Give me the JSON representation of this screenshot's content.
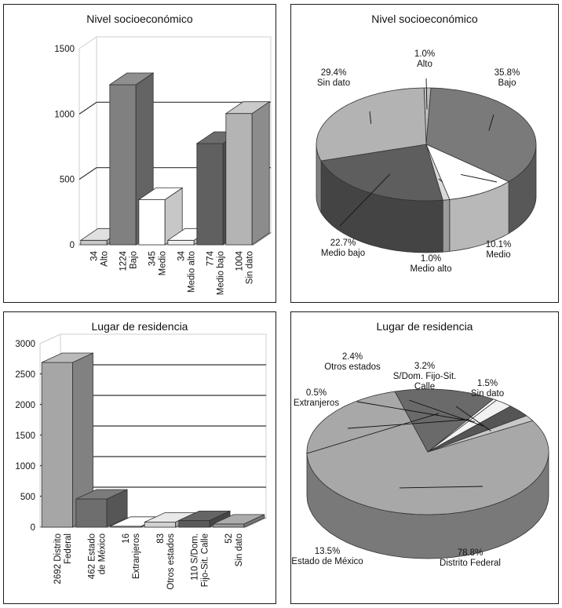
{
  "chart_data": [
    {
      "type": "bar",
      "title": "Nivel socioeconómico",
      "ylim": [
        0,
        1500
      ],
      "yticks": [
        "0",
        "500",
        "1000",
        "1500"
      ],
      "categories": [
        [
          "34",
          "Alto"
        ],
        [
          "1224",
          "Bajo"
        ],
        [
          "345",
          "Medio"
        ],
        [
          "34",
          "Medio alto"
        ],
        [
          "774",
          "Medio bajo"
        ],
        [
          "1004",
          "Sin dato"
        ]
      ],
      "values": [
        34,
        1224,
        345,
        34,
        774,
        1004
      ],
      "colors": [
        "#c8c8c8",
        "#808080",
        "#ffffff",
        "#f0f0f0",
        "#606060",
        "#b4b4b4"
      ]
    },
    {
      "type": "pie",
      "title": "Nivel socioeconómico",
      "slices": [
        {
          "label": "Alto",
          "pct": "1.0%",
          "value": 1.0,
          "color": "#bdbdbd"
        },
        {
          "label": "Bajo",
          "pct": "35.8%",
          "value": 35.8,
          "color": "#7a7a7a"
        },
        {
          "label": "Medio",
          "pct": "10.1%",
          "value": 10.1,
          "color": "#ffffff"
        },
        {
          "label": "Medio alto",
          "pct": "1.0%",
          "value": 1.0,
          "color": "#d9d9d9"
        },
        {
          "label": "Medio bajo",
          "pct": "22.7%",
          "value": 22.7,
          "color": "#5e5e5e"
        },
        {
          "label": "Sin dato",
          "pct": "29.4%",
          "value": 29.4,
          "color": "#b3b3b3"
        }
      ]
    },
    {
      "type": "bar",
      "title": "Lugar de residencia",
      "ylim": [
        0,
        3000
      ],
      "yticks": [
        "0",
        "500",
        "1000",
        "1500",
        "2000",
        "2500",
        "3000"
      ],
      "categories": [
        [
          "2692 Distrito",
          "Federal"
        ],
        [
          "462 Estado",
          "de México"
        ],
        [
          "16",
          "Extranjeros"
        ],
        [
          "83",
          "Otros estados"
        ],
        [
          "110 S/Dom.",
          "Fijo-Sit. Calle"
        ],
        [
          "52",
          "Sin dato"
        ]
      ],
      "values": [
        2692,
        462,
        16,
        83,
        110,
        52
      ],
      "colors": [
        "#a6a6a6",
        "#6e6e6e",
        "#e6e6e6",
        "#d0d0d0",
        "#5a5a5a",
        "#9a9a9a"
      ]
    },
    {
      "type": "pie",
      "title": "Lugar de residencia",
      "slices": [
        {
          "label": "Distrito Federal",
          "pct": "78.8%",
          "value": 78.8,
          "color": "#a8a8a8"
        },
        {
          "label": "Estado de México",
          "pct": "13.5%",
          "value": 13.5,
          "color": "#6a6a6a"
        },
        {
          "label": "Extranjeros",
          "pct": "0.5%",
          "value": 0.5,
          "color": "#ffffff"
        },
        {
          "label": "Otros estados",
          "pct": "2.4%",
          "value": 2.4,
          "color": "#f2f2f2"
        },
        {
          "label": "S/Dom. Fijo-Sit. Calle",
          "pct": "3.2%",
          "value": 3.2,
          "color": "#555555"
        },
        {
          "label": "Sin dato",
          "pct": "1.5%",
          "value": 1.5,
          "color": "#c8c8c8"
        }
      ]
    }
  ]
}
